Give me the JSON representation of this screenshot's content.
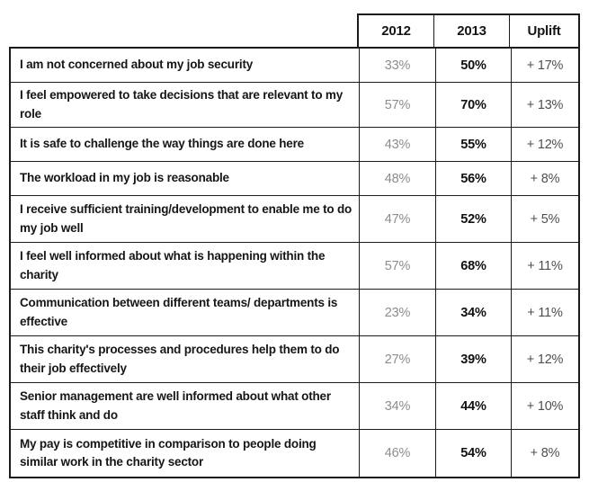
{
  "chart_data": {
    "type": "table",
    "columns": [
      "2012",
      "2013",
      "Uplift"
    ],
    "rows": [
      {
        "statement": "I am not concerned about my job security",
        "y2012": "33%",
        "y2013": "50%",
        "uplift": "+ 17%"
      },
      {
        "statement": "I feel empowered to take decisions that are relevant to my role",
        "y2012": "57%",
        "y2013": "70%",
        "uplift": "+ 13%"
      },
      {
        "statement": "It is safe to challenge the way things are done here",
        "y2012": "43%",
        "y2013": "55%",
        "uplift": "+ 12%"
      },
      {
        "statement": "The workload in my job is reasonable",
        "y2012": "48%",
        "y2013": "56%",
        "uplift": "+ 8%"
      },
      {
        "statement": "I receive sufficient training/development to enable me to do my job well",
        "y2012": "47%",
        "y2013": "52%",
        "uplift": "+ 5%"
      },
      {
        "statement": "I feel well informed about what is happening within the charity",
        "y2012": "57%",
        "y2013": "68%",
        "uplift": "+ 11%"
      },
      {
        "statement": "Communication between different teams/ departments is effective",
        "y2012": "23%",
        "y2013": "34%",
        "uplift": "+ 11%"
      },
      {
        "statement": "This charity's processes and procedures help them to do their job effectively",
        "y2012": "27%",
        "y2013": "39%",
        "uplift": "+ 12%"
      },
      {
        "statement": "Senior management are well informed about what other staff think and do",
        "y2012": "34%",
        "y2013": "44%",
        "uplift": "+ 10%"
      },
      {
        "statement": "My pay is competitive in comparison to people doing similar work in the charity sector",
        "y2012": "46%",
        "y2013": "54%",
        "uplift": "+ 8%"
      }
    ]
  },
  "colors": {
    "background": "#ffffff",
    "border": "#1b1b1b",
    "statement_text": "#161616",
    "header_text": "#161616",
    "value_2012": "#8d8d8d",
    "value_2013": "#111111",
    "value_uplift": "#4f4f4f"
  }
}
